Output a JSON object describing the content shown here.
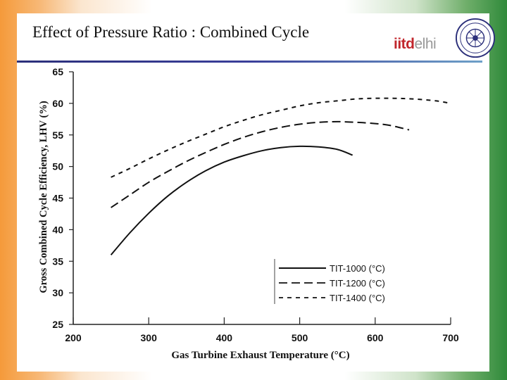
{
  "slide": {
    "title": "Effect of Pressure Ratio : Combined Cycle",
    "logo": {
      "text_strong": "iitd",
      "text_light": "elhi"
    }
  },
  "chart_data": {
    "type": "line",
    "title": "",
    "xlabel": "Gas Turbine Exhaust Temperature (°C)",
    "ylabel": "Gross Combined Cycle Efficiency, LHV (%)",
    "xlim": [
      200,
      700
    ],
    "ylim": [
      25,
      65
    ],
    "xticks": [
      200,
      300,
      400,
      500,
      600,
      700
    ],
    "xtick_labels": [
      "200",
      "300",
      "400",
      "500",
      "600",
      "700"
    ],
    "yticks": [
      25,
      30,
      35,
      40,
      45,
      50,
      55,
      60,
      65
    ],
    "ytick_labels": [
      "25",
      "30",
      "35",
      "40",
      "45",
      "50",
      "55",
      "60",
      "65"
    ],
    "grid": false,
    "legend_position": "bottom-right",
    "series": [
      {
        "name": "TIT-1000 (°C)",
        "style": "solid",
        "x": [
          250,
          275,
          300,
          325,
          350,
          375,
          400,
          425,
          450,
          475,
          500,
          525,
          550,
          570
        ],
        "y": [
          36.0,
          39.5,
          42.6,
          45.3,
          47.5,
          49.3,
          50.7,
          51.7,
          52.5,
          53.0,
          53.2,
          53.1,
          52.7,
          51.8
        ]
      },
      {
        "name": "TIT-1200 (°C)",
        "style": "dashed",
        "x": [
          250,
          275,
          300,
          325,
          350,
          375,
          400,
          425,
          450,
          475,
          500,
          525,
          550,
          575,
          600,
          620,
          645
        ],
        "y": [
          43.5,
          45.5,
          47.5,
          49.2,
          50.8,
          52.2,
          53.5,
          54.6,
          55.5,
          56.2,
          56.7,
          57.0,
          57.1,
          57.0,
          56.8,
          56.5,
          55.8
        ]
      },
      {
        "name": "TIT-1400 (°C)",
        "style": "dotted",
        "x": [
          250,
          275,
          300,
          325,
          350,
          375,
          400,
          425,
          450,
          475,
          500,
          525,
          550,
          575,
          600,
          625,
          650,
          680,
          700
        ],
        "y": [
          48.3,
          49.7,
          51.2,
          52.6,
          53.9,
          55.1,
          56.3,
          57.3,
          58.2,
          58.9,
          59.6,
          60.1,
          60.4,
          60.7,
          60.8,
          60.8,
          60.7,
          60.4,
          60.0
        ]
      }
    ]
  },
  "colors": {
    "line": "#111111",
    "title_rule": "#2b2f7a",
    "logo_red": "#c1272d",
    "logo_gray": "#999999"
  }
}
